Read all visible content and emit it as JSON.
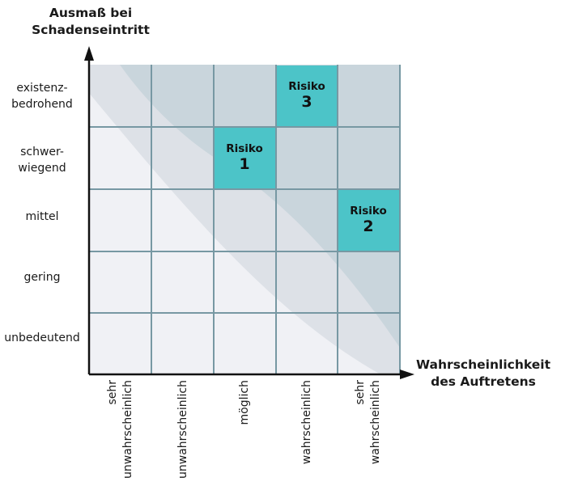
{
  "y_axis": {
    "title_line1": "Ausmaß bei",
    "title_line2": "Schadenseintritt"
  },
  "x_axis": {
    "title_line1": "Wahrscheinlichkeit",
    "title_line2": "des Auftretens"
  },
  "severity_levels": [
    {
      "line1": "existenz-",
      "line2": "bedrohend"
    },
    {
      "line1": "schwer-",
      "line2": "wiegend"
    },
    {
      "line1": "mittel",
      "line2": ""
    },
    {
      "line1": "gering",
      "line2": ""
    },
    {
      "line1": "unbedeutend",
      "line2": ""
    }
  ],
  "probability_levels": [
    {
      "line1": "sehr",
      "line2": "unwahrscheinlich"
    },
    {
      "line1": "unwahrscheinlich",
      "line2": ""
    },
    {
      "line1": "möglich",
      "line2": ""
    },
    {
      "line1": "wahrscheinlich",
      "line2": ""
    },
    {
      "line1": "sehr",
      "line2": "wahrscheinlich"
    }
  ],
  "risks": [
    {
      "name": "Risiko",
      "number": "1",
      "severity_index": 1,
      "probability_index": 2
    },
    {
      "name": "Risiko",
      "number": "2",
      "severity_index": 2,
      "probability_index": 4
    },
    {
      "name": "Risiko",
      "number": "3",
      "severity_index": 0,
      "probability_index": 3
    }
  ],
  "colors": {
    "zone_low": "#f0f1f5",
    "zone_mid": "#dde1e7",
    "zone_high": "#c9d5dc",
    "grid_line": "#7798a3",
    "risk_fill": "#4cc4c8",
    "axis": "#111111"
  }
}
